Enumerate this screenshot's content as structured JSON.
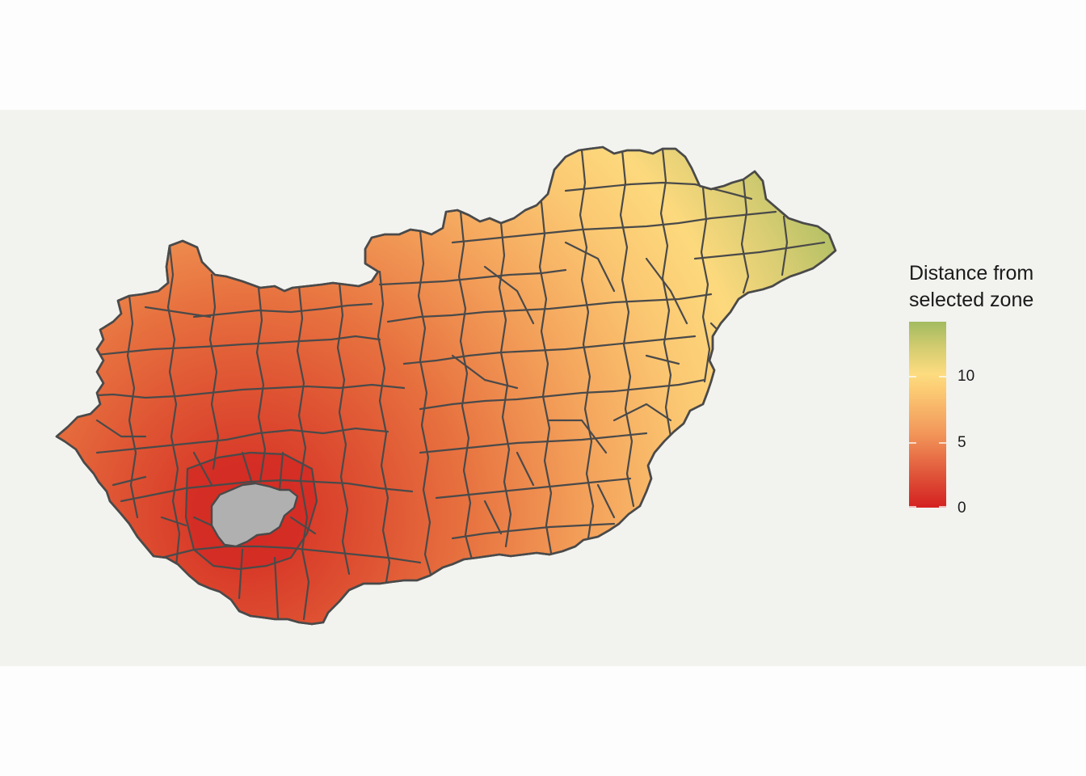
{
  "map": {
    "country": "Hungary",
    "region_type": "districts (járások)",
    "selected_zone_color": "#b0b0b0",
    "border_color": "#4a4a4a",
    "background_color": "#f2f2ef"
  },
  "legend": {
    "title_line1": "Distance from",
    "title_line2": "selected zone",
    "ticks": [
      {
        "label": "10",
        "value": 10
      },
      {
        "label": "5",
        "value": 5
      },
      {
        "label": "0",
        "value": 0
      }
    ],
    "scale_min": 0,
    "scale_max": 14,
    "colors": {
      "low": "#d42020",
      "mid": "#fddc80",
      "high": "#a2bb60"
    }
  }
}
